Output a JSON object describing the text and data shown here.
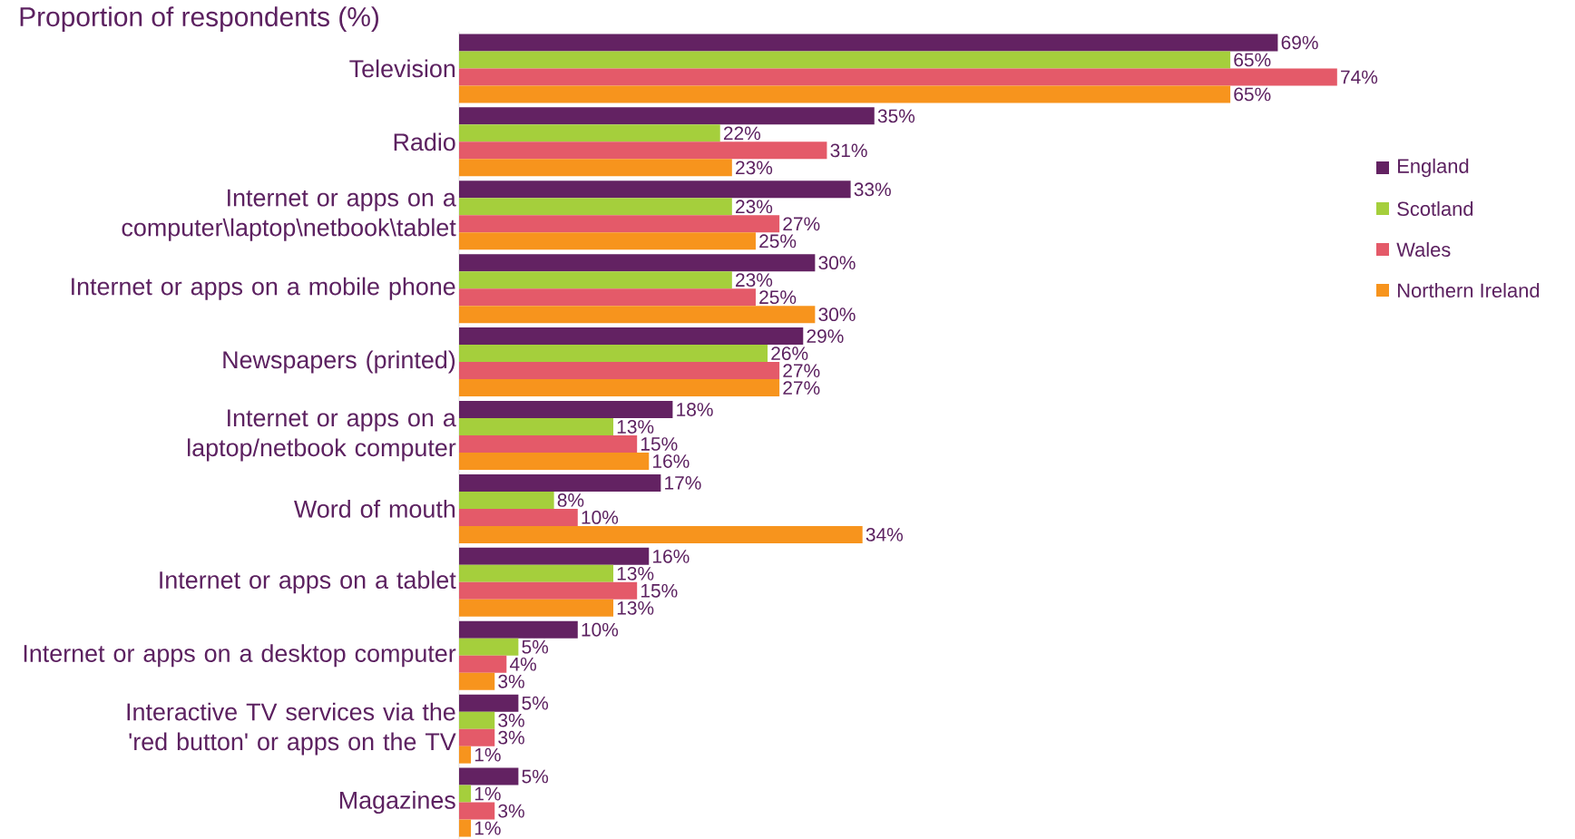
{
  "chart_data": {
    "type": "bar",
    "orientation": "horizontal",
    "title": "Proportion of respondents (%)",
    "legend": "right",
    "categories": [
      "Television",
      "Radio",
      "Internet or apps on a computer\\laptop\\netbook\\tablet",
      "Internet or apps on a mobile phone",
      "Newspapers (printed)",
      "Internet or apps on a laptop/netbook computer",
      "Word of mouth",
      "Internet or apps on a tablet",
      "Internet or apps on a desktop computer",
      "Interactive TV services via the 'red button' or apps on the TV",
      "Magazines"
    ],
    "series": [
      {
        "name": "England",
        "color": "#632262",
        "values": [
          69,
          35,
          33,
          30,
          29,
          18,
          17,
          16,
          10,
          5,
          5
        ],
        "value_labels": [
          "69%",
          "35%",
          "33%",
          "30%",
          "29%",
          "18%",
          "17%",
          "16%",
          "10%",
          "5%",
          "5%"
        ]
      },
      {
        "name": "Scotland",
        "color": "#a5cf3c",
        "values": [
          65,
          22,
          23,
          23,
          26,
          13,
          8,
          13,
          5,
          3,
          1
        ],
        "value_labels": [
          "65%",
          "22%",
          "23%",
          "23%",
          "26%",
          "13%",
          "8%",
          "13%",
          "5%",
          "3%",
          "1%"
        ]
      },
      {
        "name": "Wales",
        "color": "#e45a69",
        "values": [
          74,
          31,
          27,
          25,
          27,
          15,
          10,
          15,
          4,
          3,
          3
        ],
        "value_labels": [
          "74%",
          "31%",
          "27%",
          "25%",
          "27%",
          "15%",
          "10%",
          "15%",
          "4%",
          "3%",
          "3%"
        ]
      },
      {
        "name": "Northern Ireland",
        "color": "#f7941d",
        "values": [
          65,
          23,
          25,
          30,
          27,
          16,
          34,
          13,
          3,
          1,
          1
        ],
        "value_labels": [
          "65%",
          "23%",
          "25%",
          "30%",
          "27%",
          "16%",
          "34%",
          "13%",
          "3%",
          "1%",
          "1%"
        ]
      }
    ]
  }
}
